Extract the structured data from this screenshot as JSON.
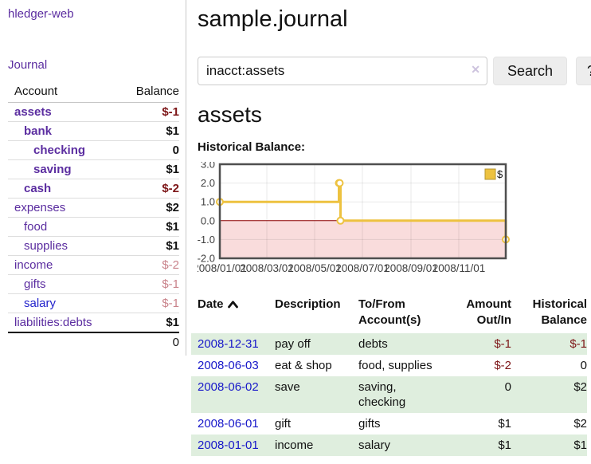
{
  "app": {
    "brand": "hledger-web",
    "nav_journal": "Journal"
  },
  "colors": {
    "accent_purple": "#5b2da0",
    "visited_blue": "#2323cc",
    "date_link_blue": "#1717c9",
    "negative_dark_red": "#7d1618",
    "negative_soft_rose": "#c9838b",
    "row_green": "#dfeede",
    "series_gold": "#edc240"
  },
  "sidebar": {
    "accounts_header": {
      "account": "Account",
      "balance": "Balance"
    },
    "accounts": [
      {
        "name": "assets",
        "balance": "$-1",
        "indent": 0,
        "bold": true,
        "negative": "strong"
      },
      {
        "name": "bank",
        "balance": "$1",
        "indent": 1,
        "bold": true
      },
      {
        "name": "checking",
        "balance": "0",
        "indent": 2,
        "bold": true
      },
      {
        "name": "saving",
        "balance": "$1",
        "indent": 2,
        "bold": true
      },
      {
        "name": "cash",
        "balance": "$-2",
        "indent": 1,
        "bold": true,
        "negative": "strong"
      },
      {
        "name": "expenses",
        "balance": "$2",
        "indent": 0
      },
      {
        "name": "food",
        "balance": "$1",
        "indent": 1
      },
      {
        "name": "supplies",
        "balance": "$1",
        "indent": 1
      },
      {
        "name": "income",
        "balance": "$-2",
        "indent": 0,
        "negative": "soft"
      },
      {
        "name": "gifts",
        "balance": "$-1",
        "indent": 1,
        "negative": "soft"
      },
      {
        "name": "salary",
        "balance": "$-1",
        "indent": 1,
        "negative": "soft",
        "visited": true
      },
      {
        "name": "liabilities:debts",
        "balance": "$1",
        "indent": 0
      }
    ],
    "total": "0"
  },
  "header": {
    "title": "sample.journal"
  },
  "search": {
    "value": "inacct:assets",
    "clear_icon": "✕",
    "button_label": "Search",
    "help_label": "?"
  },
  "main": {
    "account_heading": "assets",
    "chart_label": "Historical Balance:"
  },
  "chart_data": {
    "type": "line",
    "title": "Historical Balance:",
    "series": [
      {
        "name": "$",
        "color": "#edc240",
        "step": true,
        "points": [
          {
            "date": "2008-01-01",
            "value": 1
          },
          {
            "date": "2008-06-01",
            "value": 2
          },
          {
            "date": "2008-06-02",
            "value": 2
          },
          {
            "date": "2008-06-03",
            "value": 0
          },
          {
            "date": "2008-12-31",
            "value": -1
          }
        ]
      }
    ],
    "x_range": [
      "2008-01-01",
      "2008-12-31"
    ],
    "x_ticks": [
      "2008/01/01",
      "2008/03/01",
      "2008/05/01",
      "2008/07/01",
      "2008/09/01",
      "2008/11/01"
    ],
    "y_ticks": [
      3.0,
      2.0,
      1.0,
      0.0,
      -1.0,
      -2.0
    ],
    "ylim": [
      -2,
      3
    ],
    "grid": true,
    "legend_position": "top-right",
    "negative_region_color": "#f9dcdc",
    "zero_line_color": "#8b0000"
  },
  "table": {
    "headers": {
      "date": "Date",
      "description": "Description",
      "accounts_line1": "To/From",
      "accounts_line2": "Account(s)",
      "amount_line1": "Amount",
      "amount_line2": "Out/In",
      "balance_line1": "Historical",
      "balance_line2": "Balance"
    },
    "rows": [
      {
        "date": "2008-12-31",
        "description": "pay off",
        "accounts": "debts",
        "amount": "$-1",
        "amount_neg": true,
        "balance": "$-1",
        "balance_neg": true
      },
      {
        "date": "2008-06-03",
        "description": "eat & shop",
        "accounts": "food, supplies",
        "amount": "$-2",
        "amount_neg": true,
        "balance": "0"
      },
      {
        "date": "2008-06-02",
        "description": "save",
        "accounts": "saving, checking",
        "amount": "0",
        "balance": "$2"
      },
      {
        "date": "2008-06-01",
        "description": "gift",
        "accounts": "gifts",
        "amount": "$1",
        "balance": "$2"
      },
      {
        "date": "2008-01-01",
        "description": "income",
        "accounts": "salary",
        "amount": "$1",
        "balance": "$1"
      }
    ]
  }
}
